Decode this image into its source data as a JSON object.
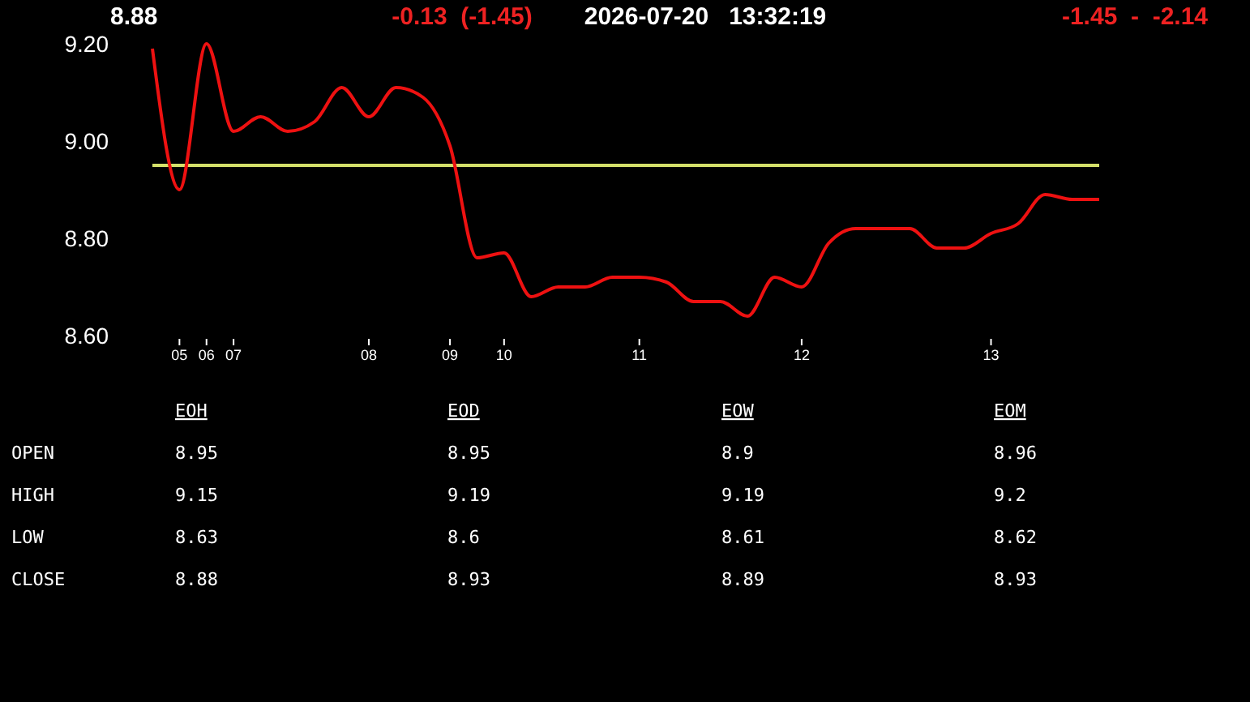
{
  "chart_data": [
    {
      "type": "line",
      "title": "8.88",
      "annotations": [
        "-0.13  (-1.45)",
        "2026-07-20   13:32:19",
        "-1.45  -  -2.14"
      ],
      "categories": [
        null,
        "05",
        "06",
        "07",
        null,
        null,
        null,
        null,
        "08",
        null,
        null,
        "09",
        null,
        "10",
        null,
        null,
        null,
        null,
        "11",
        null,
        null,
        null,
        null,
        null,
        "12",
        null,
        null,
        null,
        null,
        null,
        null,
        "13",
        null,
        null,
        null,
        null
      ],
      "series": [
        {
          "color": "#ee1111",
          "values": [
            9.19,
            8.9,
            9.2,
            9.02,
            9.05,
            9.02,
            9.04,
            9.11,
            9.05,
            9.11,
            9.09,
            8.99,
            8.76,
            8.77,
            8.68,
            8.7,
            8.7,
            8.72,
            8.72,
            8.71,
            8.67,
            8.67,
            8.64,
            8.72,
            8.7,
            8.79,
            8.82,
            8.82,
            8.82,
            8.78,
            8.78,
            8.81,
            8.83,
            8.89,
            8.88,
            8.88
          ]
        }
      ],
      "ylim": [
        8.6,
        9.2
      ],
      "yticks": [
        {
          "value": 8.6,
          "label": "8.60"
        },
        {
          "value": 8.8,
          "label": "8.80"
        },
        {
          "value": 9.0,
          "label": "9.00"
        },
        {
          "value": 9.2,
          "label": "9.20"
        }
      ],
      "ref_lines": [
        {
          "axis": "y",
          "value": 8.95,
          "color": "#d4e06a"
        }
      ],
      "grid": false,
      "marker": "none",
      "line_style": "solid"
    },
    {
      "type": "other",
      "annotations": [
        "EOH",
        "EOD",
        "EOW",
        "EOM",
        "OPEN",
        "8.95",
        "8.95",
        "8.9",
        "8.96",
        "HIGH",
        "9.15",
        "9.19",
        "9.19",
        "9.2",
        "LOW",
        "8.63",
        "8.6",
        "8.61",
        "8.62",
        "CLOSE",
        "8.88",
        "8.93",
        "8.89",
        "8.93"
      ]
    }
  ]
}
